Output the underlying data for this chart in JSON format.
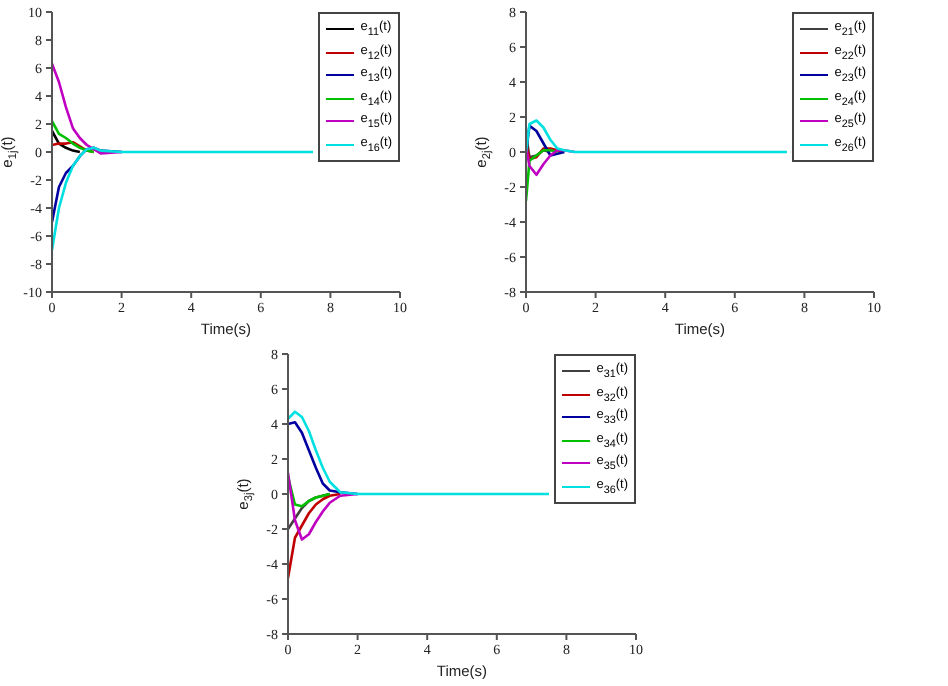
{
  "chart_data": [
    {
      "type": "line",
      "xlabel": "Time(s)",
      "ylabel": "e$_{1j}$(t)",
      "legend": "top right",
      "x": [
        0,
        0.2,
        0.4,
        0.6,
        0.8,
        1,
        1.2,
        1.4,
        2,
        4,
        6,
        7.5
      ],
      "xlim": [
        0,
        10
      ],
      "xticks": [
        0,
        2,
        4,
        6,
        8,
        10
      ],
      "ylim": [
        -10,
        10
      ],
      "yticks": [
        -10,
        -8,
        -6,
        -4,
        -2,
        0,
        2,
        4,
        6,
        8,
        10
      ],
      "series": [
        {
          "name": "e$_{11}$(t)",
          "color": "#000000",
          "values": [
            1.5,
            0.6,
            0.3,
            0.1,
            0,
            null,
            null,
            null,
            null,
            null,
            null,
            null
          ]
        },
        {
          "name": "e$_{12}$(t)",
          "color": "#c00000",
          "values": [
            0.5,
            0.6,
            0.6,
            0.7,
            0.4,
            0.1,
            0,
            null,
            null,
            null,
            null,
            null
          ]
        },
        {
          "name": "e$_{13}$(t)",
          "color": "#0000a0",
          "values": [
            -5,
            -2.5,
            -1.5,
            -1,
            -0.3,
            0.2,
            0.3,
            0.1,
            0,
            null,
            null,
            null
          ]
        },
        {
          "name": "e$_{14}$(t)",
          "color": "#00c000",
          "values": [
            2.2,
            1.3,
            1,
            0.6,
            0.3,
            0.1,
            0,
            null,
            null,
            null,
            null,
            null
          ]
        },
        {
          "name": "e$_{15}$(t)",
          "color": "#c000c0",
          "values": [
            6.3,
            5,
            3.2,
            1.7,
            1,
            0.5,
            0.2,
            -0.1,
            0,
            null,
            null,
            null
          ]
        },
        {
          "name": "e$_{16}$(t)",
          "color": "#00e0e0",
          "values": [
            -7,
            -4,
            -2.2,
            -1,
            -0.3,
            0.2,
            0.3,
            0.1,
            0,
            0,
            0,
            0
          ]
        }
      ]
    },
    {
      "type": "line",
      "xlabel": "Time(s)",
      "ylabel": "e$_{2j}$(t)",
      "legend": "top right",
      "x": [
        0,
        0.1,
        0.3,
        0.5,
        0.7,
        0.9,
        1.1,
        1.4,
        2,
        4,
        6,
        7.5
      ],
      "xlim": [
        0,
        10
      ],
      "xticks": [
        0,
        2,
        4,
        6,
        8,
        10
      ],
      "ylim": [
        -8,
        8
      ],
      "yticks": [
        -8,
        -6,
        -4,
        -2,
        0,
        2,
        4,
        6,
        8
      ],
      "series": [
        {
          "name": "e$_{21}$(t)",
          "color": "#404040",
          "values": [
            1,
            -0.3,
            -0.2,
            0.1,
            0,
            null,
            null,
            null,
            null,
            null,
            null,
            null
          ]
        },
        {
          "name": "e$_{22}$(t)",
          "color": "#c00000",
          "values": [
            0.5,
            -0.4,
            -0.3,
            0.2,
            0.2,
            0.1,
            0,
            null,
            null,
            null,
            null,
            null
          ]
        },
        {
          "name": "e$_{23}$(t)",
          "color": "#0000a0",
          "values": [
            0,
            1.5,
            1.2,
            0.5,
            -0.2,
            -0.1,
            0,
            null,
            null,
            null,
            null,
            null
          ]
        },
        {
          "name": "e$_{24}$(t)",
          "color": "#00c000",
          "values": [
            -2.8,
            -0.5,
            -0.2,
            0.1,
            0.1,
            0,
            null,
            null,
            null,
            null,
            null,
            null
          ]
        },
        {
          "name": "e$_{25}$(t)",
          "color": "#c000c0",
          "values": [
            0.3,
            -0.8,
            -1.3,
            -0.7,
            -0.2,
            0.1,
            0.1,
            0,
            null,
            null,
            null,
            null
          ]
        },
        {
          "name": "e$_{26}$(t)",
          "color": "#00e0e0",
          "values": [
            0,
            1.6,
            1.8,
            1.4,
            0.7,
            0.2,
            0.1,
            0,
            0,
            0,
            0,
            0
          ]
        }
      ]
    },
    {
      "type": "line",
      "xlabel": "Time(s)",
      "ylabel": "e$_{3j}$(t)",
      "legend": "top right",
      "x": [
        0,
        0.2,
        0.4,
        0.6,
        0.8,
        1,
        1.2,
        1.5,
        2,
        4,
        6,
        7.5
      ],
      "xlim": [
        0,
        10
      ],
      "xticks": [
        0,
        2,
        4,
        6,
        8,
        10
      ],
      "ylim": [
        -8,
        8
      ],
      "yticks": [
        -8,
        -6,
        -4,
        -2,
        0,
        2,
        4,
        6,
        8
      ],
      "series": [
        {
          "name": "e$_{31}$(t)",
          "color": "#404040",
          "values": [
            -2,
            -1.4,
            -0.8,
            -0.4,
            -0.2,
            -0.1,
            0,
            null,
            null,
            null,
            null,
            null
          ]
        },
        {
          "name": "e$_{32}$(t)",
          "color": "#c00000",
          "values": [
            -4.8,
            -2.5,
            -1.8,
            -1.1,
            -0.6,
            -0.3,
            -0.1,
            0,
            null,
            null,
            null,
            null
          ]
        },
        {
          "name": "e$_{33}$(t)",
          "color": "#0000a0",
          "values": [
            4,
            4.1,
            3.5,
            2.5,
            1.5,
            0.6,
            0.2,
            0.1,
            0,
            null,
            null,
            null
          ]
        },
        {
          "name": "e$_{34}$(t)",
          "color": "#00c000",
          "values": [
            1,
            -0.6,
            -0.7,
            -0.4,
            -0.2,
            -0.1,
            0,
            null,
            null,
            null,
            null,
            null
          ]
        },
        {
          "name": "e$_{35}$(t)",
          "color": "#c000c0",
          "values": [
            1.2,
            -1.5,
            -2.6,
            -2.3,
            -1.6,
            -1,
            -0.5,
            -0.1,
            0,
            null,
            null,
            null
          ]
        },
        {
          "name": "e$_{36}$(t)",
          "color": "#00e0e0",
          "values": [
            4.3,
            4.7,
            4.4,
            3.6,
            2.5,
            1.5,
            0.7,
            0.1,
            0,
            0,
            0,
            0
          ]
        }
      ]
    }
  ]
}
